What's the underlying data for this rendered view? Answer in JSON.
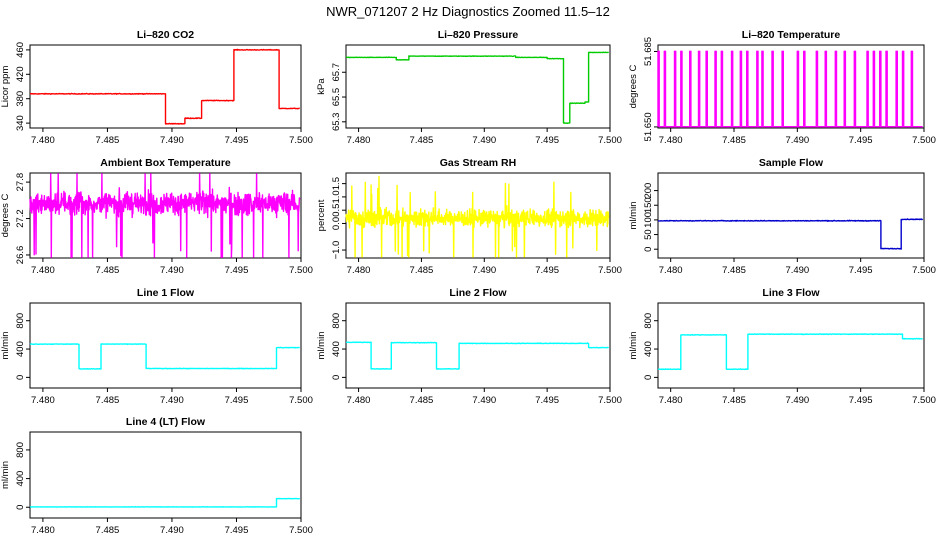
{
  "figure_title": "NWR_071207  2 Hz Diagnostics Zoomed 11.5–12",
  "chart_data": [
    {
      "id": "co2",
      "type": "line",
      "title": "Li–820 CO2",
      "ylabel": "Licor ppm",
      "color": "#ff0000",
      "xlim": [
        7.479,
        7.5
      ],
      "ylim": [
        332,
        468
      ],
      "noise": 1.0,
      "x_ticks": [
        7.48,
        7.485,
        7.49,
        7.495,
        7.5
      ],
      "x_tick_labels": [
        "7.480",
        "7.485",
        "7.490",
        "7.495",
        "7.500"
      ],
      "y_ticks": [
        340,
        380,
        420,
        460
      ],
      "y_tick_labels": [
        "340",
        "380",
        "420",
        "460"
      ],
      "segments": [
        [
          7.479,
          7.4895,
          388
        ],
        [
          7.4895,
          7.491,
          339
        ],
        [
          7.491,
          7.4923,
          348
        ],
        [
          7.4923,
          7.4948,
          377
        ],
        [
          7.4948,
          7.4983,
          460
        ],
        [
          7.4983,
          7.4999,
          364
        ]
      ]
    },
    {
      "id": "pressure",
      "type": "line",
      "title": "Li–820 Pressure",
      "ylabel": "kPa",
      "color": "#00cc00",
      "xlim": [
        7.479,
        7.5
      ],
      "ylim": [
        65.25,
        65.92
      ],
      "noise": 0.003,
      "x_ticks": [
        7.48,
        7.485,
        7.49,
        7.495,
        7.5
      ],
      "x_tick_labels": [
        "7.480",
        "7.485",
        "7.490",
        "7.495",
        "7.500"
      ],
      "y_ticks": [
        65.3,
        65.5,
        65.7
      ],
      "y_tick_labels": [
        "65.3",
        "65.5",
        "65.7"
      ],
      "segments": [
        [
          7.479,
          7.483,
          65.82
        ],
        [
          7.483,
          7.484,
          65.8
        ],
        [
          7.484,
          7.488,
          65.83
        ],
        [
          7.488,
          7.4925,
          65.83
        ],
        [
          7.4925,
          7.495,
          65.82
        ],
        [
          7.495,
          7.4963,
          65.81
        ],
        [
          7.4963,
          7.4968,
          65.29
        ],
        [
          7.4968,
          7.498,
          65.45
        ],
        [
          7.498,
          7.4983,
          65.46
        ],
        [
          7.4983,
          7.4999,
          65.86
        ]
      ]
    },
    {
      "id": "licor_temp",
      "type": "line",
      "title": "Li–820 Temperature",
      "ylabel": "degrees C",
      "color": "#ff00ff",
      "xlim": [
        7.479,
        7.5
      ],
      "ylim": [
        51.6495,
        51.688
      ],
      "baseline": 51.6501,
      "high": 51.6851,
      "x_ticks": [
        7.48,
        7.485,
        7.49,
        7.495,
        7.5
      ],
      "x_tick_labels": [
        "7.480",
        "7.485",
        "7.490",
        "7.495",
        "7.500"
      ],
      "y_ticks": [
        51.65,
        51.685
      ],
      "y_tick_labels": [
        "51.650",
        "51.685"
      ],
      "spikes": [
        7.479,
        7.4795,
        7.4803,
        7.4808,
        7.4815,
        7.4822,
        7.4828,
        7.4835,
        7.484,
        7.4848,
        7.4855,
        7.486,
        7.4868,
        7.4872,
        7.488,
        7.4888,
        7.49,
        7.4905,
        7.4915,
        7.4922,
        7.493,
        7.4937,
        7.4945,
        7.4955,
        7.496,
        7.4965,
        7.497,
        7.4978,
        7.4983,
        7.499
      ]
    },
    {
      "id": "ambient_temp",
      "type": "line",
      "title": "Ambient Box Temperature",
      "ylabel": "degrees C",
      "color": "#ff00ff",
      "xlim": [
        7.479,
        7.5
      ],
      "ylim": [
        26.55,
        27.95
      ],
      "center": 27.45,
      "noise": 0.2,
      "x_ticks": [
        7.48,
        7.485,
        7.49,
        7.495,
        7.5
      ],
      "x_tick_labels": [
        "7.480",
        "7.485",
        "7.490",
        "7.495",
        "7.500"
      ],
      "y_ticks": [
        26.6,
        27.2,
        27.8
      ],
      "y_tick_labels": [
        "26.6",
        "27.2",
        "27.8"
      ]
    },
    {
      "id": "rh",
      "type": "line",
      "title": "Gas Stream RH",
      "ylabel": "percent",
      "color": "#ffff00",
      "xlim": [
        7.479,
        7.5
      ],
      "ylim": [
        -1.3,
        1.9
      ],
      "center": 0.2,
      "noise": 0.35,
      "x_ticks": [
        7.48,
        7.485,
        7.49,
        7.495,
        7.5
      ],
      "x_tick_labels": [
        "7.480",
        "7.485",
        "7.490",
        "7.495",
        "7.500"
      ],
      "y_ticks": [
        -1.0,
        0.0,
        0.5,
        1.0,
        1.5
      ],
      "y_tick_labels": [
        "−1.0",
        "0.0",
        "0.5",
        "1.0",
        "1.5"
      ]
    },
    {
      "id": "sample_flow",
      "type": "line",
      "title": "Sample Flow",
      "ylabel": "ml/min",
      "color": "#0000cc",
      "xlim": [
        7.479,
        7.5
      ],
      "ylim": [
        -30,
        260
      ],
      "noise": 2,
      "x_ticks": [
        7.48,
        7.485,
        7.49,
        7.495,
        7.5
      ],
      "x_tick_labels": [
        "7.480",
        "7.485",
        "7.490",
        "7.495",
        "7.500"
      ],
      "y_ticks": [
        0,
        50,
        100,
        150,
        200
      ],
      "y_tick_labels": [
        "0",
        "50",
        "100",
        "150",
        "200"
      ],
      "segments": [
        [
          7.479,
          7.4966,
          97
        ],
        [
          7.4966,
          7.4982,
          2
        ],
        [
          7.4982,
          7.4999,
          102
        ]
      ]
    },
    {
      "id": "line1",
      "type": "line",
      "title": "Line 1 Flow",
      "ylabel": "ml/min",
      "color": "#00ffff",
      "xlim": [
        7.479,
        7.5
      ],
      "ylim": [
        -150,
        1050
      ],
      "noise": 6,
      "x_ticks": [
        7.48,
        7.485,
        7.49,
        7.495,
        7.5
      ],
      "x_tick_labels": [
        "7.480",
        "7.485",
        "7.490",
        "7.495",
        "7.500"
      ],
      "y_ticks": [
        0,
        400,
        800
      ],
      "y_tick_labels": [
        "0",
        "400",
        "800"
      ],
      "segments": [
        [
          7.479,
          7.4828,
          470
        ],
        [
          7.4828,
          7.4845,
          120
        ],
        [
          7.4845,
          7.488,
          470
        ],
        [
          7.488,
          7.4981,
          125
        ],
        [
          7.4981,
          7.4999,
          420
        ]
      ]
    },
    {
      "id": "line2",
      "type": "line",
      "title": "Line 2 Flow",
      "ylabel": "ml/min",
      "color": "#00ffff",
      "xlim": [
        7.479,
        7.5
      ],
      "ylim": [
        -150,
        1050
      ],
      "noise": 6,
      "x_ticks": [
        7.48,
        7.485,
        7.49,
        7.495,
        7.5
      ],
      "x_tick_labels": [
        "7.480",
        "7.485",
        "7.490",
        "7.495",
        "7.500"
      ],
      "y_ticks": [
        0,
        400,
        800
      ],
      "y_tick_labels": [
        "0",
        "400",
        "800"
      ],
      "segments": [
        [
          7.479,
          7.481,
          495
        ],
        [
          7.481,
          7.4826,
          120
        ],
        [
          7.4826,
          7.4862,
          490
        ],
        [
          7.4862,
          7.488,
          120
        ],
        [
          7.488,
          7.4983,
          480
        ],
        [
          7.4983,
          7.4999,
          420
        ]
      ]
    },
    {
      "id": "line3",
      "type": "line",
      "title": "Line 3 Flow",
      "ylabel": "ml/min",
      "color": "#00ffff",
      "xlim": [
        7.479,
        7.5
      ],
      "ylim": [
        -150,
        1050
      ],
      "noise": 6,
      "x_ticks": [
        7.48,
        7.485,
        7.49,
        7.495,
        7.5
      ],
      "x_tick_labels": [
        "7.480",
        "7.485",
        "7.490",
        "7.495",
        "7.500"
      ],
      "y_ticks": [
        0,
        400,
        800
      ],
      "y_tick_labels": [
        "0",
        "400",
        "800"
      ],
      "segments": [
        [
          7.479,
          7.4808,
          115
        ],
        [
          7.4808,
          7.4844,
          600
        ],
        [
          7.4844,
          7.4861,
          115
        ],
        [
          7.4861,
          7.4983,
          610
        ],
        [
          7.4983,
          7.4999,
          545
        ]
      ]
    },
    {
      "id": "line4",
      "type": "line",
      "title": "Line 4 (LT) Flow",
      "ylabel": "ml/min",
      "color": "#00ffff",
      "xlim": [
        7.479,
        7.5
      ],
      "ylim": [
        -150,
        1050
      ],
      "noise": 3,
      "x_ticks": [
        7.48,
        7.485,
        7.49,
        7.495,
        7.5
      ],
      "x_tick_labels": [
        "7.480",
        "7.485",
        "7.490",
        "7.495",
        "7.500"
      ],
      "y_ticks": [
        0,
        400,
        800
      ],
      "y_tick_labels": [
        "0",
        "400",
        "800"
      ],
      "segments": [
        [
          7.479,
          7.4981,
          5
        ],
        [
          7.4981,
          7.4999,
          120
        ]
      ]
    }
  ]
}
